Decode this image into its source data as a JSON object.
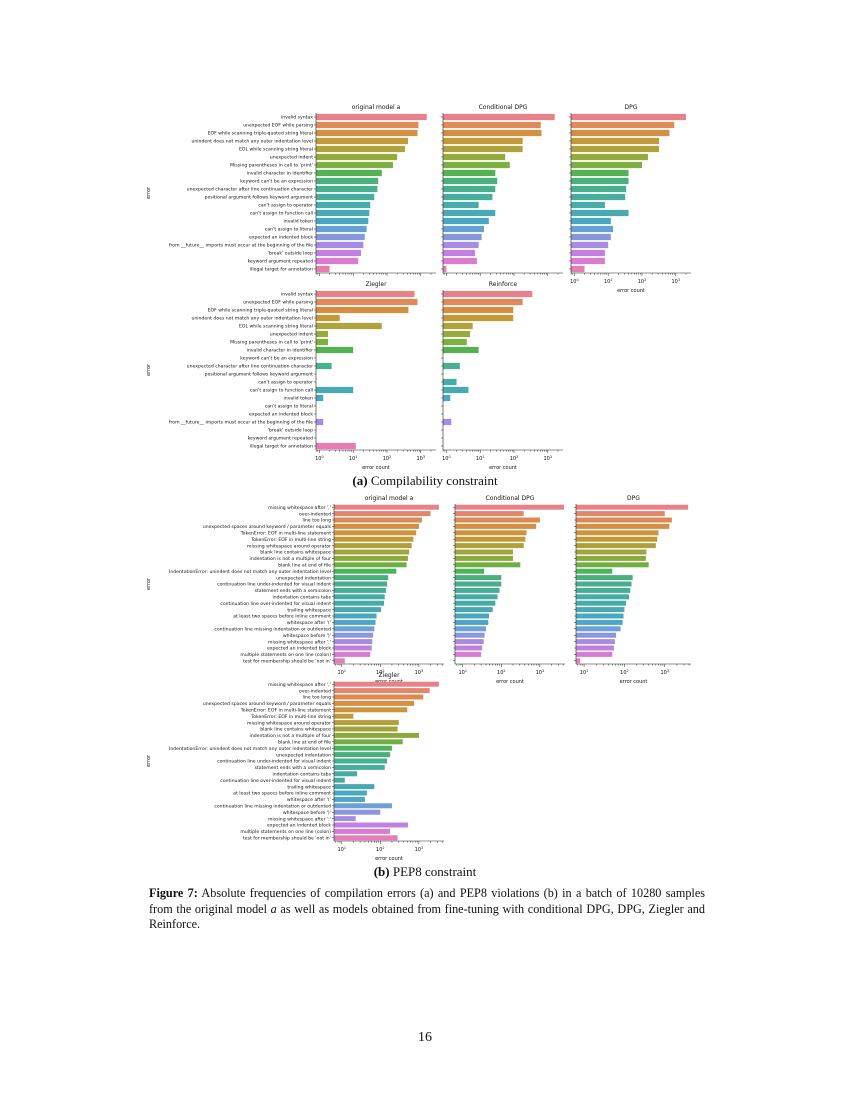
{
  "figure_a": {
    "subcaption_label": "(a)",
    "subcaption_text": " Compilability constraint",
    "y_axis_label": "error",
    "x_axis_label": "error count",
    "categories": [
      "invalid syntax",
      "unexpected EOF while parsing",
      "EOF while scanning triple-quoted string literal",
      "unindent does not match any outer indentation level",
      "EOL while scanning string literal",
      "unexpected indent",
      "Missing parentheses in call to 'print'",
      "invalid character in identifier",
      "keyword can't be an expression",
      "unexpected character after line continuation character",
      "positional argument follows keyword argument",
      "can't assign to operator",
      "can't assign to function call",
      "invalid token",
      "can't assign to literal",
      "expected an indented block",
      "from __future__ imports must occur at the beginning of the file",
      "'break' outside loop",
      "keyword argument repeated",
      "illegal target for annotation"
    ],
    "colors": [
      "#e8828a",
      "#e08a5a",
      "#d48f42",
      "#c49a38",
      "#aea43a",
      "#97aa3c",
      "#7cb040",
      "#55b252",
      "#4bb17a",
      "#48b08f",
      "#47ae9e",
      "#48aca9",
      "#49aab5",
      "#4aa7c3",
      "#64a0d4",
      "#8597de",
      "#a68ce2",
      "#c27fe0",
      "#dc7bcf",
      "#e77db2"
    ],
    "ticks_major": [
      1,
      10,
      100,
      1000
    ],
    "ticks": [
      {
        "exp": "0",
        "label_base": "10"
      },
      {
        "exp": "1",
        "label_base": "10"
      },
      {
        "exp": "2",
        "label_base": "10"
      },
      {
        "exp": "3",
        "label_base": "10"
      }
    ],
    "panels": [
      {
        "title": "original model a",
        "values": [
          1500,
          850,
          800,
          420,
          340,
          200,
          150,
          70,
          55,
          52,
          42,
          32,
          30,
          28,
          25,
          22,
          20,
          17,
          14,
          2
        ]
      },
      {
        "title": "Conditional DPG",
        "values": [
          1600,
          620,
          650,
          180,
          180,
          55,
          75,
          28,
          32,
          28,
          23,
          9,
          28,
          18,
          13,
          11,
          9,
          7,
          8,
          1
        ]
      },
      {
        "title": "DPG",
        "values": [
          2000,
          900,
          650,
          320,
          320,
          150,
          100,
          40,
          40,
          34,
          32,
          8,
          40,
          12,
          14,
          12,
          10,
          8,
          8,
          2
        ]
      },
      {
        "title": "Ziegler",
        "values": [
          650,
          800,
          430,
          4,
          70,
          1.8,
          1.8,
          10,
          0,
          2.3,
          0,
          0,
          10,
          1.3,
          0,
          0,
          1.3,
          0,
          0,
          12
        ]
      },
      {
        "title": "Reinforce",
        "values": [
          350,
          180,
          95,
          95,
          6,
          5,
          4,
          9,
          0,
          2.5,
          0,
          2,
          4.5,
          1.3,
          0,
          0,
          1.4,
          0,
          0,
          0
        ]
      }
    ]
  },
  "figure_b": {
    "subcaption_label": "(b)",
    "subcaption_text": " PEP8 constraint",
    "y_axis_label": "error",
    "x_axis_label": "error count",
    "categories": [
      "missing whitespace after ','",
      "over-indented",
      "line too long",
      "unexpected spaces around keyword / parameter equals",
      "TokenError: EOF in multi-line statement",
      "TokenError: EOF in multi-line string",
      "missing whitespace around operator",
      "blank line contains whitespace",
      "indentation is not a multiple of four",
      "blank line at end of file",
      "IndentationError: unindent does not match any outer indentation level",
      "unexpected indentation",
      "continuation line under-indented for visual indent",
      "statement ends with a semicolon",
      "indentation contains tabs",
      "continuation line over-indented for visual indent",
      "trailing whitespace",
      "at least two spaces before inline comment",
      "whitespace after '('",
      "continuation line missing indentation or outdented",
      "whitespace before ')'",
      "missing whitespace after ':'",
      "expected an indented block",
      "multiple statements on one line (colon)",
      "test for membership should be 'not in'"
    ],
    "colors": [
      "#e8828a",
      "#e3866c",
      "#dd8a52",
      "#d68e44",
      "#cc943c",
      "#c09a38",
      "#b09f3a",
      "#a0a43c",
      "#8ca93e",
      "#71ae44",
      "#4fb25c",
      "#4ab07b",
      "#48ae8d",
      "#47ad98",
      "#47aca1",
      "#48aba9",
      "#49a9b2",
      "#4aa8bc",
      "#4ea5c8",
      "#6ca0d6",
      "#8a96de",
      "#a68ce2",
      "#c080e0",
      "#d87bd2",
      "#e47db8"
    ],
    "ticks": [
      {
        "exp": "1",
        "label_base": "10"
      },
      {
        "exp": "2",
        "label_base": "10"
      },
      {
        "exp": "3",
        "label_base": "10"
      }
    ],
    "panels": [
      {
        "title": "original model a",
        "values": [
          3300,
          2000,
          1200,
          1000,
          850,
          720,
          650,
          560,
          520,
          480,
          260,
          160,
          150,
          140,
          130,
          125,
          105,
          80,
          75,
          70,
          65,
          62,
          60,
          55,
          12
        ]
      },
      {
        "title": "Conditional DPG",
        "values": [
          4200,
          380,
          1000,
          800,
          450,
          420,
          380,
          200,
          200,
          310,
          36,
          100,
          100,
          90,
          80,
          70,
          60,
          48,
          46,
          40,
          37,
          35,
          32,
          30,
          4
        ]
      },
      {
        "title": "DPG",
        "values": [
          3800,
          1000,
          1500,
          1300,
          700,
          650,
          600,
          350,
          340,
          400,
          50,
          160,
          150,
          140,
          130,
          110,
          100,
          95,
          90,
          80,
          62,
          58,
          55,
          50,
          8
        ]
      },
      {
        "title": "Ziegler",
        "values": [
          3300,
          1900,
          1300,
          750,
          500,
          20,
          300,
          280,
          1000,
          380,
          200,
          180,
          150,
          130,
          25,
          12,
          70,
          45,
          40,
          200,
          100,
          23,
          520,
          180,
          280
        ]
      }
    ]
  },
  "caption": {
    "label": "Figure 7:",
    "text_1": " Absolute frequencies of compilation errors (a) and PEP8 violations (b) in a batch of 10280 samples from the original model ",
    "text_italic": "a",
    "text_2": " as well as models obtained from fine-tuning with conditional DPG, DPG, Ziegler and Reinforce."
  },
  "page_number": "16"
}
